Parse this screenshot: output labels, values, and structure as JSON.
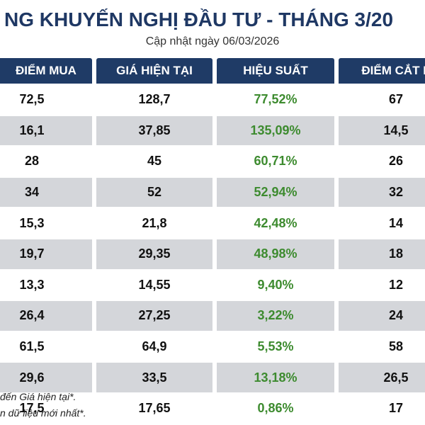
{
  "header": {
    "title": "NG KHUYẾN NGHỊ ĐẦU TƯ - THÁNG 3/20",
    "subtitle": "Cập nhật ngày 06/03/2026"
  },
  "table": {
    "columns": [
      "ĐIỂM MUA",
      "GIÁ HIỆN TẠI",
      "HIỆU SUẤT",
      "ĐIỂM CẮT L"
    ],
    "rows": [
      [
        "72,5",
        "128,7",
        "77,52%",
        "67"
      ],
      [
        "16,1",
        "37,85",
        "135,09%",
        "14,5"
      ],
      [
        "28",
        "45",
        "60,71%",
        "26"
      ],
      [
        "34",
        "52",
        "52,94%",
        "32"
      ],
      [
        "15,3",
        "21,8",
        "42,48%",
        "14"
      ],
      [
        "19,7",
        "29,35",
        "48,98%",
        "18"
      ],
      [
        "13,3",
        "14,55",
        "9,40%",
        "12"
      ],
      [
        "26,4",
        "27,25",
        "3,22%",
        "24"
      ],
      [
        "61,5",
        "64,9",
        "5,53%",
        "58"
      ],
      [
        "29,6",
        "33,5",
        "13,18%",
        "26,5"
      ],
      [
        "17,5",
        "17,65",
        "0,86%",
        "17"
      ]
    ]
  },
  "footnotes": [
    "đến Giá hiện tại*.",
    "n dữ liệu mới nhất*."
  ]
}
